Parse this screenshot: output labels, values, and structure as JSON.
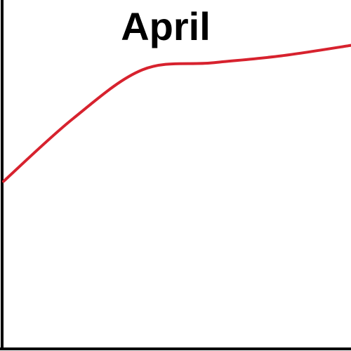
{
  "chart_data": {
    "type": "line",
    "title": "April",
    "xlabel": "",
    "ylabel": "",
    "x": [
      0,
      1,
      2,
      3,
      4,
      5
    ],
    "series": [
      {
        "values": [
          48,
          66,
          80,
          82,
          84,
          87
        ]
      }
    ],
    "xlim": [
      0,
      5
    ],
    "ylim": [
      0,
      100
    ],
    "grid": false,
    "legend": "none",
    "line_color": "#d7222e",
    "axis_color": "#000000"
  }
}
